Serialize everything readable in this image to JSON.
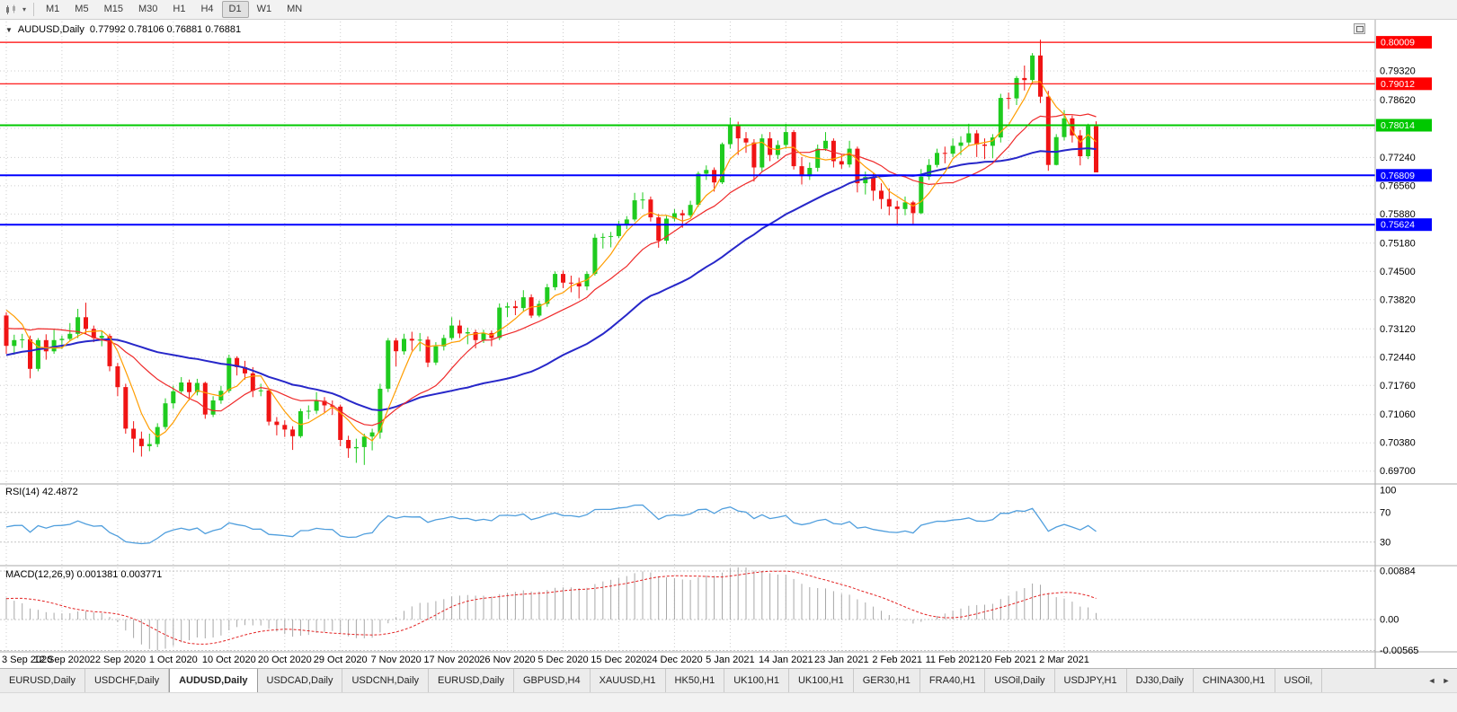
{
  "colors": {
    "candle_up": "#1fcb1f",
    "candle_down": "#f01414",
    "grid": "#cdcdcd",
    "separator": "#aaaaaa",
    "rsi_line": "#4f9edd",
    "rsi_level": "#c4c4c4",
    "macd_hist": "#a8a8a8",
    "macd_signal": "#e32222",
    "axis_text": "#000000",
    "badge_text": "#ffffff"
  },
  "icons": {
    "caret": "▾",
    "collapse": "▼"
  },
  "toolbar": {
    "timeframes": [
      "M1",
      "M5",
      "M15",
      "M30",
      "H1",
      "H4",
      "D1",
      "W1",
      "MN"
    ],
    "active_timeframe": "D1"
  },
  "chart": {
    "collapse_icon": "▼",
    "title": "AUDUSD,Daily",
    "ohlc": "0.77992 0.78106 0.76881 0.76881"
  },
  "indicators": {
    "rsi_label": "RSI(14) 42.4872",
    "macd_label": "MACD(12,26,9) 0.001381 0.003771"
  },
  "chart_data": {
    "type": "candlestick",
    "symbol": "AUDUSD",
    "timeframe": "Daily",
    "label_every": 7,
    "x_labels": [
      "3 Sep 2020",
      "12 Sep 2020",
      "22 Sep 2020",
      "1 Oct 2020",
      "10 Oct 2020",
      "20 Oct 2020",
      "29 Oct 2020",
      "7 Nov 2020",
      "17 Nov 2020",
      "26 Nov 2020",
      "5 Dec 2020",
      "15 Dec 2020",
      "24 Dec 2020",
      "5 Jan 2021",
      "14 Jan 2021",
      "23 Jan 2021",
      "2 Feb 2021",
      "11 Feb 2021",
      "20 Feb 2021",
      "2 Mar 2021"
    ],
    "price_ticks": [
      "0.79320",
      "0.78620",
      "0.77940",
      "0.77240",
      "0.76560",
      "0.75880",
      "0.75180",
      "0.74500",
      "0.73820",
      "0.73120",
      "0.72440",
      "0.71760",
      "0.71060",
      "0.70380",
      "0.69700"
    ],
    "hlines": [
      {
        "price": 0.80009,
        "label": "0.80009",
        "color": "#ff0000",
        "width": 1.2
      },
      {
        "price": 0.79012,
        "label": "0.79012",
        "color": "#ff0000",
        "width": 1.2
      },
      {
        "price": 0.78014,
        "label": "0.78014",
        "color": "#00c800",
        "width": 2
      },
      {
        "price": 0.76809,
        "label": "0.76809",
        "color": "#0000ff",
        "width": 2
      },
      {
        "price": 0.75624,
        "label": "0.75624",
        "color": "#0000ff",
        "width": 2
      }
    ],
    "ma": [
      {
        "name": "SMA34",
        "period": 34,
        "color": "#2727c9",
        "w": 2
      },
      {
        "name": "SMA13",
        "period": 13,
        "color": "#ef2929",
        "w": 1.2
      },
      {
        "name": "SMA5",
        "period": 5,
        "color": "#ff9d00",
        "w": 1.2
      }
    ],
    "rsi": {
      "period": 14,
      "value": "42.4872",
      "levels": [
        70,
        30
      ],
      "ticks": [
        {
          "v": 100,
          "label": "100"
        },
        {
          "v": 70,
          "label": "70"
        },
        {
          "v": 30,
          "label": "30"
        }
      ]
    },
    "macd": {
      "params": "12,26,9",
      "main": "0.001381",
      "signal": "0.003771",
      "ticks": [
        {
          "v": 0.00884,
          "label": "0.00884"
        },
        {
          "v": 0,
          "label": "0.00"
        },
        {
          "v": -0.00565,
          "label": "-0.00565"
        }
      ]
    },
    "seed_closes": [
      0.712,
      0.7145,
      0.716,
      0.7138,
      0.7155,
      0.718,
      0.7165,
      0.719,
      0.721,
      0.7185,
      0.7205,
      0.723,
      0.7215,
      0.7195,
      0.722,
      0.7245,
      0.726,
      0.7235,
      0.725,
      0.727,
      0.7255,
      0.728,
      0.73,
      0.7285,
      0.7262,
      0.724,
      0.7268,
      0.729,
      0.731,
      0.7335,
      0.736,
      0.7385,
      0.7405,
      0.7365
    ],
    "candles": [
      [
        0.7344,
        0.7352,
        0.7252,
        0.7271
      ],
      [
        0.7271,
        0.7298,
        0.725,
        0.7285
      ],
      [
        0.7285,
        0.73,
        0.7266,
        0.7287
      ],
      [
        0.7287,
        0.7296,
        0.7193,
        0.7216
      ],
      [
        0.7216,
        0.729,
        0.721,
        0.7285
      ],
      [
        0.7285,
        0.7299,
        0.7238,
        0.7258
      ],
      [
        0.7258,
        0.731,
        0.7252,
        0.7285
      ],
      [
        0.7285,
        0.7296,
        0.7264,
        0.7288
      ],
      [
        0.7288,
        0.7326,
        0.7282,
        0.73
      ],
      [
        0.73,
        0.736,
        0.729,
        0.734
      ],
      [
        0.734,
        0.7375,
        0.73,
        0.7312
      ],
      [
        0.7312,
        0.732,
        0.728,
        0.729
      ],
      [
        0.729,
        0.7306,
        0.727,
        0.7295
      ],
      [
        0.7295,
        0.73,
        0.721,
        0.7222
      ],
      [
        0.7222,
        0.723,
        0.715,
        0.7172
      ],
      [
        0.7172,
        0.718,
        0.706,
        0.7072
      ],
      [
        0.7072,
        0.709,
        0.7015,
        0.7048
      ],
      [
        0.7048,
        0.7065,
        0.7005,
        0.703
      ],
      [
        0.703,
        0.706,
        0.7018,
        0.7035
      ],
      [
        0.7035,
        0.7085,
        0.7028,
        0.7076
      ],
      [
        0.7076,
        0.7145,
        0.707,
        0.7133
      ],
      [
        0.7133,
        0.7175,
        0.712,
        0.7162
      ],
      [
        0.7162,
        0.7196,
        0.7155,
        0.7183
      ],
      [
        0.7183,
        0.719,
        0.714,
        0.716
      ],
      [
        0.716,
        0.7192,
        0.7152,
        0.7182
      ],
      [
        0.7182,
        0.7185,
        0.7096,
        0.7106
      ],
      [
        0.7106,
        0.715,
        0.71,
        0.714
      ],
      [
        0.714,
        0.7175,
        0.7132,
        0.7163
      ],
      [
        0.7163,
        0.725,
        0.7158,
        0.7242
      ],
      [
        0.7242,
        0.7246,
        0.72,
        0.722
      ],
      [
        0.722,
        0.7235,
        0.719,
        0.7205
      ],
      [
        0.7205,
        0.722,
        0.7148,
        0.7163
      ],
      [
        0.7163,
        0.718,
        0.715,
        0.7164
      ],
      [
        0.7164,
        0.717,
        0.708,
        0.7089
      ],
      [
        0.7089,
        0.71,
        0.7056,
        0.7081
      ],
      [
        0.7081,
        0.7092,
        0.7052,
        0.707
      ],
      [
        0.707,
        0.7078,
        0.7021,
        0.7054
      ],
      [
        0.7054,
        0.712,
        0.705,
        0.7114
      ],
      [
        0.7114,
        0.7128,
        0.7095,
        0.7115
      ],
      [
        0.7115,
        0.716,
        0.7108,
        0.7139
      ],
      [
        0.7139,
        0.7148,
        0.711,
        0.7128
      ],
      [
        0.7128,
        0.714,
        0.7105,
        0.7125
      ],
      [
        0.7125,
        0.713,
        0.703,
        0.7045
      ],
      [
        0.7045,
        0.7055,
        0.7002,
        0.7025
      ],
      [
        0.7025,
        0.7048,
        0.699,
        0.7028
      ],
      [
        0.7028,
        0.706,
        0.6985,
        0.7053
      ],
      [
        0.7053,
        0.7072,
        0.702,
        0.7063
      ],
      [
        0.7063,
        0.718,
        0.7048,
        0.7168
      ],
      [
        0.7168,
        0.729,
        0.716,
        0.7284
      ],
      [
        0.7284,
        0.729,
        0.7222,
        0.7258
      ],
      [
        0.7258,
        0.73,
        0.725,
        0.7288
      ],
      [
        0.7288,
        0.7305,
        0.726,
        0.7284
      ],
      [
        0.7284,
        0.7302,
        0.7258,
        0.7286
      ],
      [
        0.7286,
        0.7294,
        0.722,
        0.7231
      ],
      [
        0.7231,
        0.728,
        0.7225,
        0.727
      ],
      [
        0.727,
        0.7298,
        0.726,
        0.729
      ],
      [
        0.729,
        0.734,
        0.7285,
        0.732
      ],
      [
        0.732,
        0.7333,
        0.729,
        0.7301
      ],
      [
        0.7301,
        0.7315,
        0.7275,
        0.7304
      ],
      [
        0.7304,
        0.731,
        0.7265,
        0.7285
      ],
      [
        0.7285,
        0.731,
        0.7278,
        0.7302
      ],
      [
        0.7302,
        0.7308,
        0.727,
        0.729
      ],
      [
        0.729,
        0.7373,
        0.7285,
        0.7363
      ],
      [
        0.7363,
        0.7375,
        0.734,
        0.7366
      ],
      [
        0.7366,
        0.738,
        0.7345,
        0.7362
      ],
      [
        0.7362,
        0.7405,
        0.7355,
        0.7388
      ],
      [
        0.7388,
        0.7395,
        0.7338,
        0.7344
      ],
      [
        0.7344,
        0.738,
        0.734,
        0.7372
      ],
      [
        0.7372,
        0.742,
        0.7365,
        0.7412
      ],
      [
        0.7412,
        0.745,
        0.7405,
        0.7444
      ],
      [
        0.7444,
        0.7452,
        0.741,
        0.7423
      ],
      [
        0.7423,
        0.744,
        0.74,
        0.7422
      ],
      [
        0.7422,
        0.7435,
        0.7385,
        0.7414
      ],
      [
        0.7414,
        0.745,
        0.7405,
        0.7444
      ],
      [
        0.7444,
        0.754,
        0.744,
        0.7531
      ],
      [
        0.7531,
        0.7542,
        0.7505,
        0.7533
      ],
      [
        0.7533,
        0.7545,
        0.7508,
        0.7535
      ],
      [
        0.7535,
        0.7572,
        0.753,
        0.7561
      ],
      [
        0.7561,
        0.7583,
        0.7552,
        0.7575
      ],
      [
        0.7575,
        0.7639,
        0.757,
        0.7621
      ],
      [
        0.7621,
        0.764,
        0.76,
        0.7623
      ],
      [
        0.7623,
        0.763,
        0.757,
        0.758
      ],
      [
        0.758,
        0.7588,
        0.7507,
        0.7524
      ],
      [
        0.7524,
        0.7585,
        0.7516,
        0.7577
      ],
      [
        0.7577,
        0.76,
        0.757,
        0.759
      ],
      [
        0.759,
        0.7598,
        0.7555,
        0.7585
      ],
      [
        0.7585,
        0.762,
        0.758,
        0.761
      ],
      [
        0.761,
        0.769,
        0.7605,
        0.7685
      ],
      [
        0.7685,
        0.7705,
        0.767,
        0.7694
      ],
      [
        0.7694,
        0.77,
        0.7642,
        0.7664
      ],
      [
        0.7664,
        0.776,
        0.766,
        0.7756
      ],
      [
        0.7756,
        0.782,
        0.7745,
        0.7803
      ],
      [
        0.7803,
        0.781,
        0.773,
        0.777
      ],
      [
        0.777,
        0.7785,
        0.7735,
        0.776
      ],
      [
        0.776,
        0.7768,
        0.7666,
        0.77
      ],
      [
        0.77,
        0.778,
        0.769,
        0.777
      ],
      [
        0.777,
        0.7785,
        0.7715,
        0.773
      ],
      [
        0.773,
        0.7765,
        0.772,
        0.7754
      ],
      [
        0.7754,
        0.7805,
        0.7745,
        0.7785
      ],
      [
        0.7785,
        0.779,
        0.7695,
        0.7703
      ],
      [
        0.7703,
        0.7725,
        0.7659,
        0.7679
      ],
      [
        0.7679,
        0.7712,
        0.767,
        0.7699
      ],
      [
        0.7699,
        0.7755,
        0.769,
        0.7745
      ],
      [
        0.7745,
        0.7785,
        0.774,
        0.7764
      ],
      [
        0.7764,
        0.777,
        0.77,
        0.7715
      ],
      [
        0.7715,
        0.773,
        0.7697,
        0.7707
      ],
      [
        0.7707,
        0.7764,
        0.77,
        0.7745
      ],
      [
        0.7745,
        0.775,
        0.764,
        0.7662
      ],
      [
        0.7662,
        0.769,
        0.7635,
        0.7677
      ],
      [
        0.7677,
        0.7685,
        0.762,
        0.7644
      ],
      [
        0.7644,
        0.7662,
        0.76,
        0.7624
      ],
      [
        0.7624,
        0.765,
        0.7585,
        0.7606
      ],
      [
        0.7606,
        0.762,
        0.7564,
        0.76
      ],
      [
        0.76,
        0.763,
        0.7585,
        0.7616
      ],
      [
        0.7616,
        0.762,
        0.7562,
        0.759
      ],
      [
        0.759,
        0.7696,
        0.7588,
        0.7678
      ],
      [
        0.7678,
        0.772,
        0.767,
        0.7706
      ],
      [
        0.7706,
        0.7745,
        0.77,
        0.7735
      ],
      [
        0.7735,
        0.775,
        0.771,
        0.7733
      ],
      [
        0.7733,
        0.777,
        0.7725,
        0.7752
      ],
      [
        0.7752,
        0.7775,
        0.773,
        0.776
      ],
      [
        0.776,
        0.7805,
        0.7752,
        0.7782
      ],
      [
        0.7782,
        0.779,
        0.7725,
        0.7755
      ],
      [
        0.7755,
        0.777,
        0.772,
        0.7752
      ],
      [
        0.7752,
        0.778,
        0.7722,
        0.7772
      ],
      [
        0.7772,
        0.7877,
        0.776,
        0.7867
      ],
      [
        0.7867,
        0.788,
        0.784,
        0.7866
      ],
      [
        0.7866,
        0.792,
        0.785,
        0.7915
      ],
      [
        0.7915,
        0.7945,
        0.7885,
        0.791
      ],
      [
        0.791,
        0.7975,
        0.79,
        0.7969
      ],
      [
        0.7969,
        0.8007,
        0.7855,
        0.787
      ],
      [
        0.787,
        0.7884,
        0.7692,
        0.7706
      ],
      [
        0.7706,
        0.778,
        0.7705,
        0.7773
      ],
      [
        0.7773,
        0.7838,
        0.7765,
        0.7818
      ],
      [
        0.7818,
        0.7825,
        0.776,
        0.7777
      ],
      [
        0.7777,
        0.779,
        0.7705,
        0.7727
      ],
      [
        0.7727,
        0.7805,
        0.772,
        0.7799
      ],
      [
        0.7799,
        0.7811,
        0.7688,
        0.7688
      ]
    ]
  },
  "tabbar": {
    "active_index": 2,
    "scroll_left": "◄",
    "scroll_right": "►",
    "tabs": [
      {
        "label": "EURUSD,Daily"
      },
      {
        "label": "USDCHF,Daily"
      },
      {
        "label": "AUDUSD,Daily"
      },
      {
        "label": "USDCAD,Daily"
      },
      {
        "label": "USDCNH,Daily"
      },
      {
        "label": "EURUSD,Daily"
      },
      {
        "label": "GBPUSD,H4"
      },
      {
        "label": "XAUUSD,H1"
      },
      {
        "label": "HK50,H1"
      },
      {
        "label": "UK100,H1"
      },
      {
        "label": "UK100,H1"
      },
      {
        "label": "GER30,H1"
      },
      {
        "label": "FRA40,H1"
      },
      {
        "label": "USOil,Daily"
      },
      {
        "label": "USDJPY,H1"
      },
      {
        "label": "DJ30,Daily"
      },
      {
        "label": "CHINA300,H1"
      },
      {
        "label": "USOil,"
      }
    ]
  }
}
